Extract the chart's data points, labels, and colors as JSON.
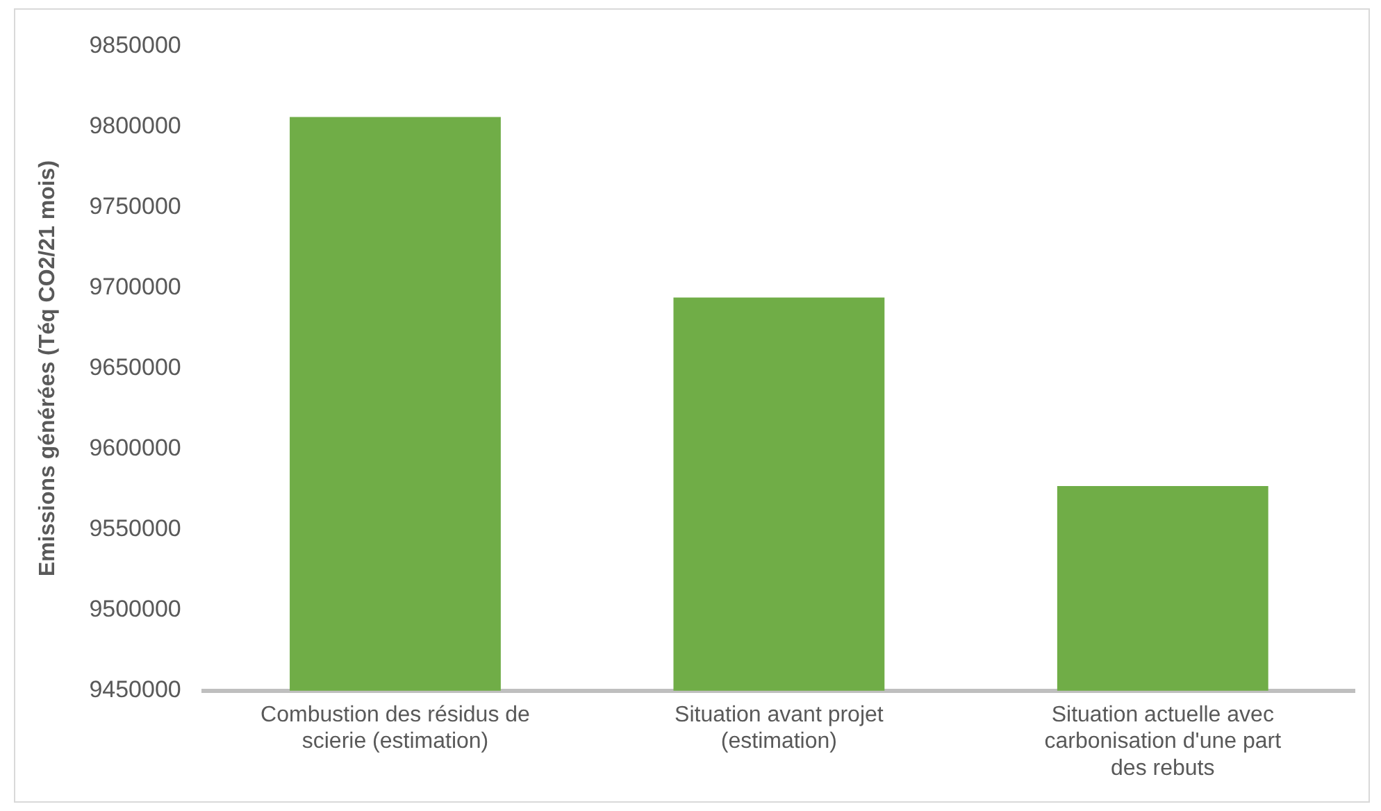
{
  "chart_data": {
    "type": "bar",
    "ylabel": "Emissions générées (Téq CO2/21 mois)",
    "categories": [
      "Combustion des résidus de scierie (estimation)",
      "Situation avant projet (estimation)",
      "Situation actuelle avec carbonisation d'une part des rebuts"
    ],
    "values": [
      9806000,
      9694000,
      9577000
    ],
    "color": "#70ad47",
    "ylim": [
      9450000,
      9850000
    ],
    "yticks": [
      9450000,
      9500000,
      9550000,
      9600000,
      9650000,
      9700000,
      9750000,
      9800000,
      9850000
    ],
    "grid": false,
    "legend": false
  }
}
